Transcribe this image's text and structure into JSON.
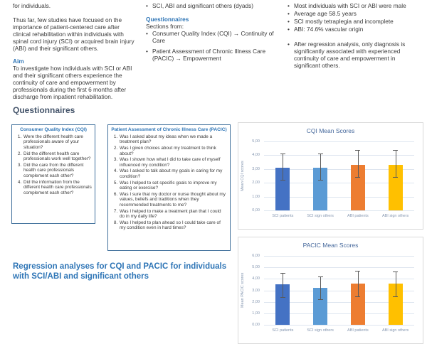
{
  "poster": {
    "left_column": {
      "fragment": "for individuals.",
      "background_para": "Thus far, few studies have focused on the importance of patient-centered care after clinical rehabilitation within individuals with spinal cord injury (SCI) or acquired brain injury (ABI) and their significant others.",
      "aim_heading": "Aim",
      "aim_para": "To investigate how individuals with SCI or ABI and their significant others experience the continuity of care and empowerment by professionals during the first 6 months after discharge from inpatient rehabilitation."
    },
    "middle_column": {
      "participants_bullets": [
        "SCI, ABI and significant others (dyads)"
      ],
      "questionnaires_heading": "Questionnaires",
      "sections_from_label": "Sections from:",
      "questionnaire_bullets": [
        "Consumer Quality Index (CQI) → Continuity of Care",
        "Patient Assessment of Chronic Illness Care (PACIC) → Empowerment"
      ]
    },
    "right_column": {
      "results_bullets": [
        "Most individuals with SCI or ABI were male",
        "Average age 58.5 years",
        "SCI mostly tetraplegia and incomplete",
        "ABI: 74.6% vascular origin"
      ],
      "conclusion_bullets": [
        "After regression analysis, only diagnosis is significantly associated with experienced continuity of care and empowerment in significant others."
      ]
    },
    "questionnaires_section_heading": "Questionnaires",
    "cqi_box": {
      "title": "Consumer Quality Index (CQI)",
      "items": [
        "Were the different health care professionals aware of your situation?",
        "Did the different health care professionals work well together?",
        "Did the care from the different health care professionals complement each other?",
        "Did the information from the different health care professionals complement each other?"
      ]
    },
    "pacic_box": {
      "title": "Patient Assessment of Chronic Illness Care (PACIC)",
      "items": [
        "Was I asked about my ideas when we made a treatment plan?",
        "Was I given choices about my treatment to think about?",
        "Was I shown how what I did to take care of myself influenced my condition?",
        "Was I asked to talk about my goals in caring for my condition?",
        "Was I helped to set specific goals to improve my eating or exercise?",
        "Was I sure that my doctor or nurse thought about my values, beliefs and traditions when they recommended treatments to me?",
        "Was I helped to make a treatment plan that I could do in my daily life?",
        "Was I helped to plan ahead so I could take care of my condition even in hard times?"
      ]
    },
    "regression_heading": "Regression analyses for CQI and PACIC for individuals with SCI/ABI and significant others"
  },
  "chart_data": [
    {
      "type": "bar",
      "title": "CQI Mean Scores",
      "xlabel": "",
      "ylabel": "Mean CQI scores",
      "categories": [
        "SCI patients",
        "SCI sign others",
        "ABI patients",
        "ABI sign others"
      ],
      "values": [
        3.1,
        3.1,
        3.3,
        3.3
      ],
      "error_low": [
        2.2,
        2.2,
        2.4,
        2.4
      ],
      "error_high": [
        4.1,
        4.1,
        4.4,
        4.4
      ],
      "bar_colors": [
        "#4472C4",
        "#5B9BD5",
        "#ED7D31",
        "#FFC000"
      ],
      "ylim": [
        0,
        5
      ],
      "yticks": [
        {
          "value": 0,
          "label": "0,00"
        },
        {
          "value": 1,
          "label": "1,00"
        },
        {
          "value": 2,
          "label": "2,00"
        },
        {
          "value": 3,
          "label": "3,00"
        },
        {
          "value": 4,
          "label": "4,00"
        },
        {
          "value": 5,
          "label": "5,00"
        }
      ],
      "grid": true,
      "legend": "none"
    },
    {
      "type": "bar",
      "title": "PACIC Mean Scores",
      "xlabel": "",
      "ylabel": "Mean PACIC scores",
      "categories": [
        "SCI patients",
        "SCI sign others",
        "ABI patients",
        "ABI sign others"
      ],
      "values": [
        3.5,
        3.2,
        3.6,
        3.6
      ],
      "error_low": [
        2.4,
        2.2,
        2.5,
        2.5
      ],
      "error_high": [
        4.5,
        4.2,
        4.7,
        4.65
      ],
      "bar_colors": [
        "#4472C4",
        "#5B9BD5",
        "#ED7D31",
        "#FFC000"
      ],
      "ylim": [
        0,
        6
      ],
      "yticks": [
        {
          "value": 0,
          "label": "0,00"
        },
        {
          "value": 1,
          "label": "1,00"
        },
        {
          "value": 2,
          "label": "2,00"
        },
        {
          "value": 3,
          "label": "3,00"
        },
        {
          "value": 4,
          "label": "4,00"
        },
        {
          "value": 5,
          "label": "5,00"
        },
        {
          "value": 6,
          "label": "6,00"
        }
      ],
      "grid": true,
      "legend": "none",
      "note_clipped": "chart partially cut off at bottom of screenshot"
    }
  ],
  "colors": {
    "heading_blue": "#2E75B6",
    "section_heading": "#44546A",
    "box_border": "#41719C",
    "body_text": "#3A3A3A",
    "chart_title": "#44679B",
    "chart_ticks": "#8496B0",
    "gridline": "#DDE5EF",
    "error_bar": "#595959"
  }
}
